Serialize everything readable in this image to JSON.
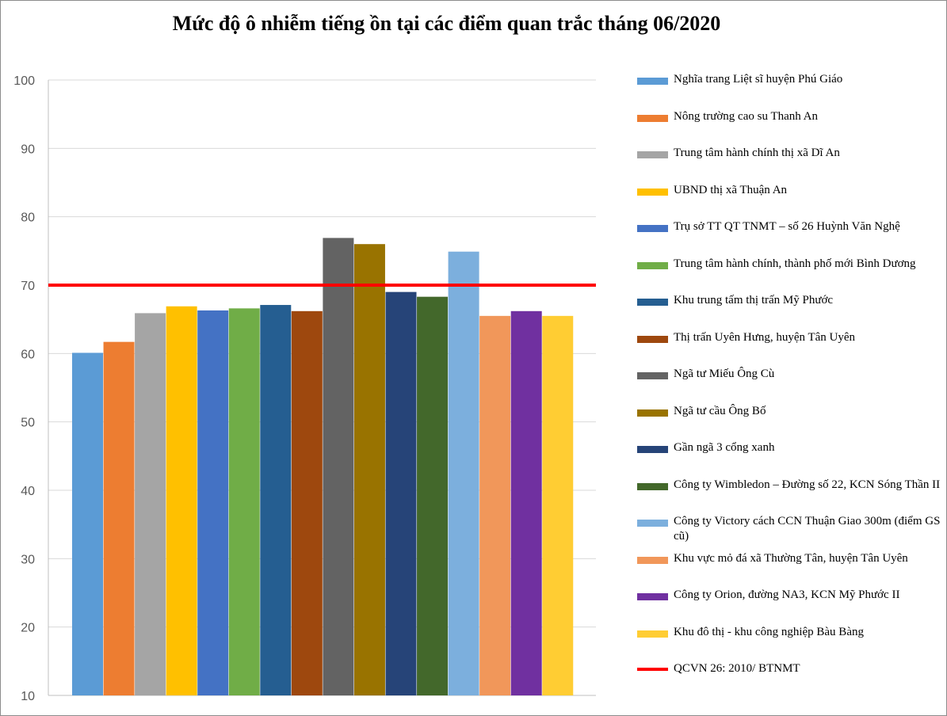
{
  "chart_data": {
    "type": "bar",
    "title": "Mức độ ô nhiễm tiếng ồn tại các điểm quan trắc tháng 06/2020",
    "xlabel": "",
    "ylabel": "",
    "ylim": [
      10,
      100
    ],
    "yticks": [
      10,
      20,
      30,
      40,
      50,
      60,
      70,
      80,
      90,
      100
    ],
    "grid": true,
    "legend_position": "right",
    "series": [
      {
        "name": "Nghĩa trang Liệt sĩ huyện Phú Giáo",
        "value": 60.1,
        "color": "#5B9BD5"
      },
      {
        "name": "Nông trường cao su Thanh  An",
        "value": 61.7,
        "color": "#ED7D31"
      },
      {
        "name": "Trung  tâm hành  chính thị xã Dĩ An",
        "value": 65.9,
        "color": "#A5A5A5"
      },
      {
        "name": "UBND thị xã Thuận  An",
        "value": 66.9,
        "color": "#FFC000"
      },
      {
        "name": "Trụ sở TT  QT  TNMT  – số 26 Huỳnh  Văn Nghệ",
        "value": 66.3,
        "color": "#4472C4"
      },
      {
        "name": "Trung  tâm hành  chính, thành phố mới Bình Dương",
        "value": 66.6,
        "color": "#70AD47"
      },
      {
        "name": "Khu trung tấm thị trấn Mỹ Phước",
        "value": 67.1,
        "color": "#255E91"
      },
      {
        "name": "Thị trấn Uyên Hưng, huyện Tân Uyên",
        "value": 66.2,
        "color": "#9E480E"
      },
      {
        "name": "Ngã tư Miếu Ông Cù",
        "value": 76.9,
        "color": "#636363"
      },
      {
        "name": "Ngã tư cầu Ông Bố",
        "value": 76.0,
        "color": "#997300"
      },
      {
        "name": "Gần ngã 3 cổng xanh",
        "value": 69.0,
        "color": "#264478"
      },
      {
        "name": "Công ty Wimbledon – Đường số 22,  KCN Sóng Thần II",
        "value": 68.3,
        "color": "#43682B"
      },
      {
        "name": "Công ty Victory cách CCN Thuận Giao 300m (điểm GS cũ)",
        "value": 74.9,
        "color": "#7CAFDD"
      },
      {
        "name": "Khu vực mỏ đá xã Thường Tân, huyện Tân Uyên",
        "value": 65.5,
        "color": "#F1975A"
      },
      {
        "name": "Công ty Orion, đường NA3, KCN Mỹ Phước II",
        "value": 66.2,
        "color": "#7030A0"
      },
      {
        "name": "Khu đô thị - khu công nghiệp Bàu Bàng",
        "value": 65.5,
        "color": "#FFCD33"
      }
    ],
    "reference_line": {
      "name": "QCVN 26: 2010/ BTNMT",
      "value": 70,
      "color": "#FF0000"
    }
  }
}
